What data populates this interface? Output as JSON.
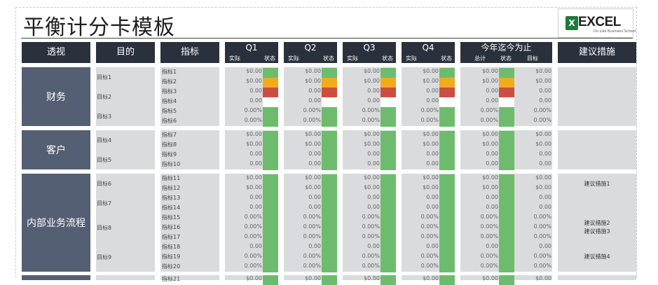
{
  "title": "平衡计分卡模板",
  "logo": {
    "mark": "X",
    "word": "EXCEL",
    "tagline": "Do Like Business School"
  },
  "headers": {
    "perspective": "透视",
    "objective": "目的",
    "indicator": "指标",
    "quarters": [
      {
        "label": "Q1",
        "actual": "实际",
        "status": "状态"
      },
      {
        "label": "Q2",
        "actual": "实际",
        "status": "状态"
      },
      {
        "label": "Q3",
        "actual": "实际",
        "status": "状态"
      },
      {
        "label": "Q4",
        "actual": "实际",
        "status": "状态"
      }
    ],
    "ytd": {
      "label": "今年迄今为止",
      "total": "总计",
      "status": "状态",
      "target": "目标"
    },
    "suggestion": "建议措施"
  },
  "perspectives": [
    {
      "name": "财务",
      "goals": [
        "目标1",
        "目标2",
        "目标3"
      ]
    },
    {
      "name": "客户",
      "goals": [
        "目标4",
        "目标5"
      ]
    },
    {
      "name": "内部业务流程",
      "goals": [
        "目标6",
        "目标7",
        "目标8",
        "目标9"
      ]
    }
  ],
  "suggestions": [
    "建议措施1",
    "建议措施2",
    "建议措施3",
    "建议措施4"
  ],
  "colors": {
    "green": "#6dbc6e",
    "yellow": "#f0ac1b",
    "red": "#cd4d43",
    "white": "#ffffff",
    "header": "#2b313c",
    "perspective": "#555f73"
  },
  "rows": [
    {
      "indicator": "指标1",
      "value": "$0.00",
      "target": "$0.00",
      "q_status": [
        "g",
        "g",
        "g",
        "g"
      ],
      "ytd_status": "g"
    },
    {
      "indicator": "指标2",
      "value": "$0.00",
      "target": "$0.00",
      "q_status": [
        "y",
        "y",
        "y",
        "y"
      ],
      "ytd_status": "y"
    },
    {
      "indicator": "指标3",
      "value": "0.00",
      "target": "0.00",
      "q_status": [
        "r",
        "r",
        "r",
        "r"
      ],
      "ytd_status": "r"
    },
    {
      "indicator": "指标4",
      "value": "0.00",
      "target": "0.00",
      "q_status": [
        "w",
        "w",
        "w",
        "w"
      ],
      "ytd_status": "w"
    },
    {
      "indicator": "指标5",
      "value": "0.00%",
      "target": "0.00%",
      "q_status": [
        "g",
        "g",
        "g",
        "g"
      ],
      "ytd_status": "g"
    },
    {
      "indicator": "指标6",
      "value": "0.00%",
      "target": "0.00%",
      "q_status": [
        "g",
        "g",
        "g",
        "g"
      ],
      "ytd_status": "g"
    },
    {
      "indicator": "指标7",
      "value": "$0.00",
      "target": "$0.00",
      "q_status": [
        "g",
        "g",
        "g",
        "g"
      ],
      "ytd_status": "g"
    },
    {
      "indicator": "指标8",
      "value": "$0.00",
      "target": "$0.00",
      "q_status": [
        "g",
        "g",
        "g",
        "g"
      ],
      "ytd_status": "g"
    },
    {
      "indicator": "指标9",
      "value": "0.00",
      "target": "0.00",
      "q_status": [
        "g",
        "g",
        "g",
        "g"
      ],
      "ytd_status": "g"
    },
    {
      "indicator": "指标10",
      "value": "0.00",
      "target": "0.00",
      "q_status": [
        "g",
        "g",
        "g",
        "g"
      ],
      "ytd_status": "g"
    },
    {
      "indicator": "指标11",
      "value": "$0.00",
      "target": "$0.00",
      "q_status": [
        "g",
        "g",
        "g",
        "g"
      ],
      "ytd_status": "g"
    },
    {
      "indicator": "指标12",
      "value": "$0.00",
      "target": "$0.00",
      "q_status": [
        "g",
        "g",
        "g",
        "g"
      ],
      "ytd_status": "g"
    },
    {
      "indicator": "指标13",
      "value": "0.00",
      "target": "0.00",
      "q_status": [
        "g",
        "g",
        "g",
        "g"
      ],
      "ytd_status": "g"
    },
    {
      "indicator": "指标14",
      "value": "0.00",
      "target": "0.00",
      "q_status": [
        "g",
        "g",
        "g",
        "g"
      ],
      "ytd_status": "g"
    },
    {
      "indicator": "指标15",
      "value": "0.00%",
      "target": "0.00%",
      "q_status": [
        "g",
        "g",
        "g",
        "g"
      ],
      "ytd_status": "g"
    },
    {
      "indicator": "指标16",
      "value": "0.00%",
      "target": "0.00%",
      "q_status": [
        "g",
        "g",
        "g",
        "g"
      ],
      "ytd_status": "g"
    },
    {
      "indicator": "指标17",
      "value": "0.00%",
      "target": "0.00%",
      "q_status": [
        "g",
        "g",
        "g",
        "g"
      ],
      "ytd_status": "g"
    },
    {
      "indicator": "指标18",
      "value": "0.00",
      "target": "0.00",
      "q_status": [
        "g",
        "g",
        "g",
        "g"
      ],
      "ytd_status": "g"
    },
    {
      "indicator": "指标19",
      "value": "0.00%",
      "target": "0.00%",
      "q_status": [
        "g",
        "g",
        "g",
        "g"
      ],
      "ytd_status": "g"
    },
    {
      "indicator": "指标20",
      "value": "0.00%",
      "target": "0.00%",
      "q_status": [
        "g",
        "g",
        "g",
        "g"
      ],
      "ytd_status": "g"
    },
    {
      "indicator": "指标21",
      "value": "$0.00",
      "target": "$0.00",
      "q_status": [
        "g",
        "g",
        "g",
        "g"
      ],
      "ytd_status": "g"
    }
  ]
}
